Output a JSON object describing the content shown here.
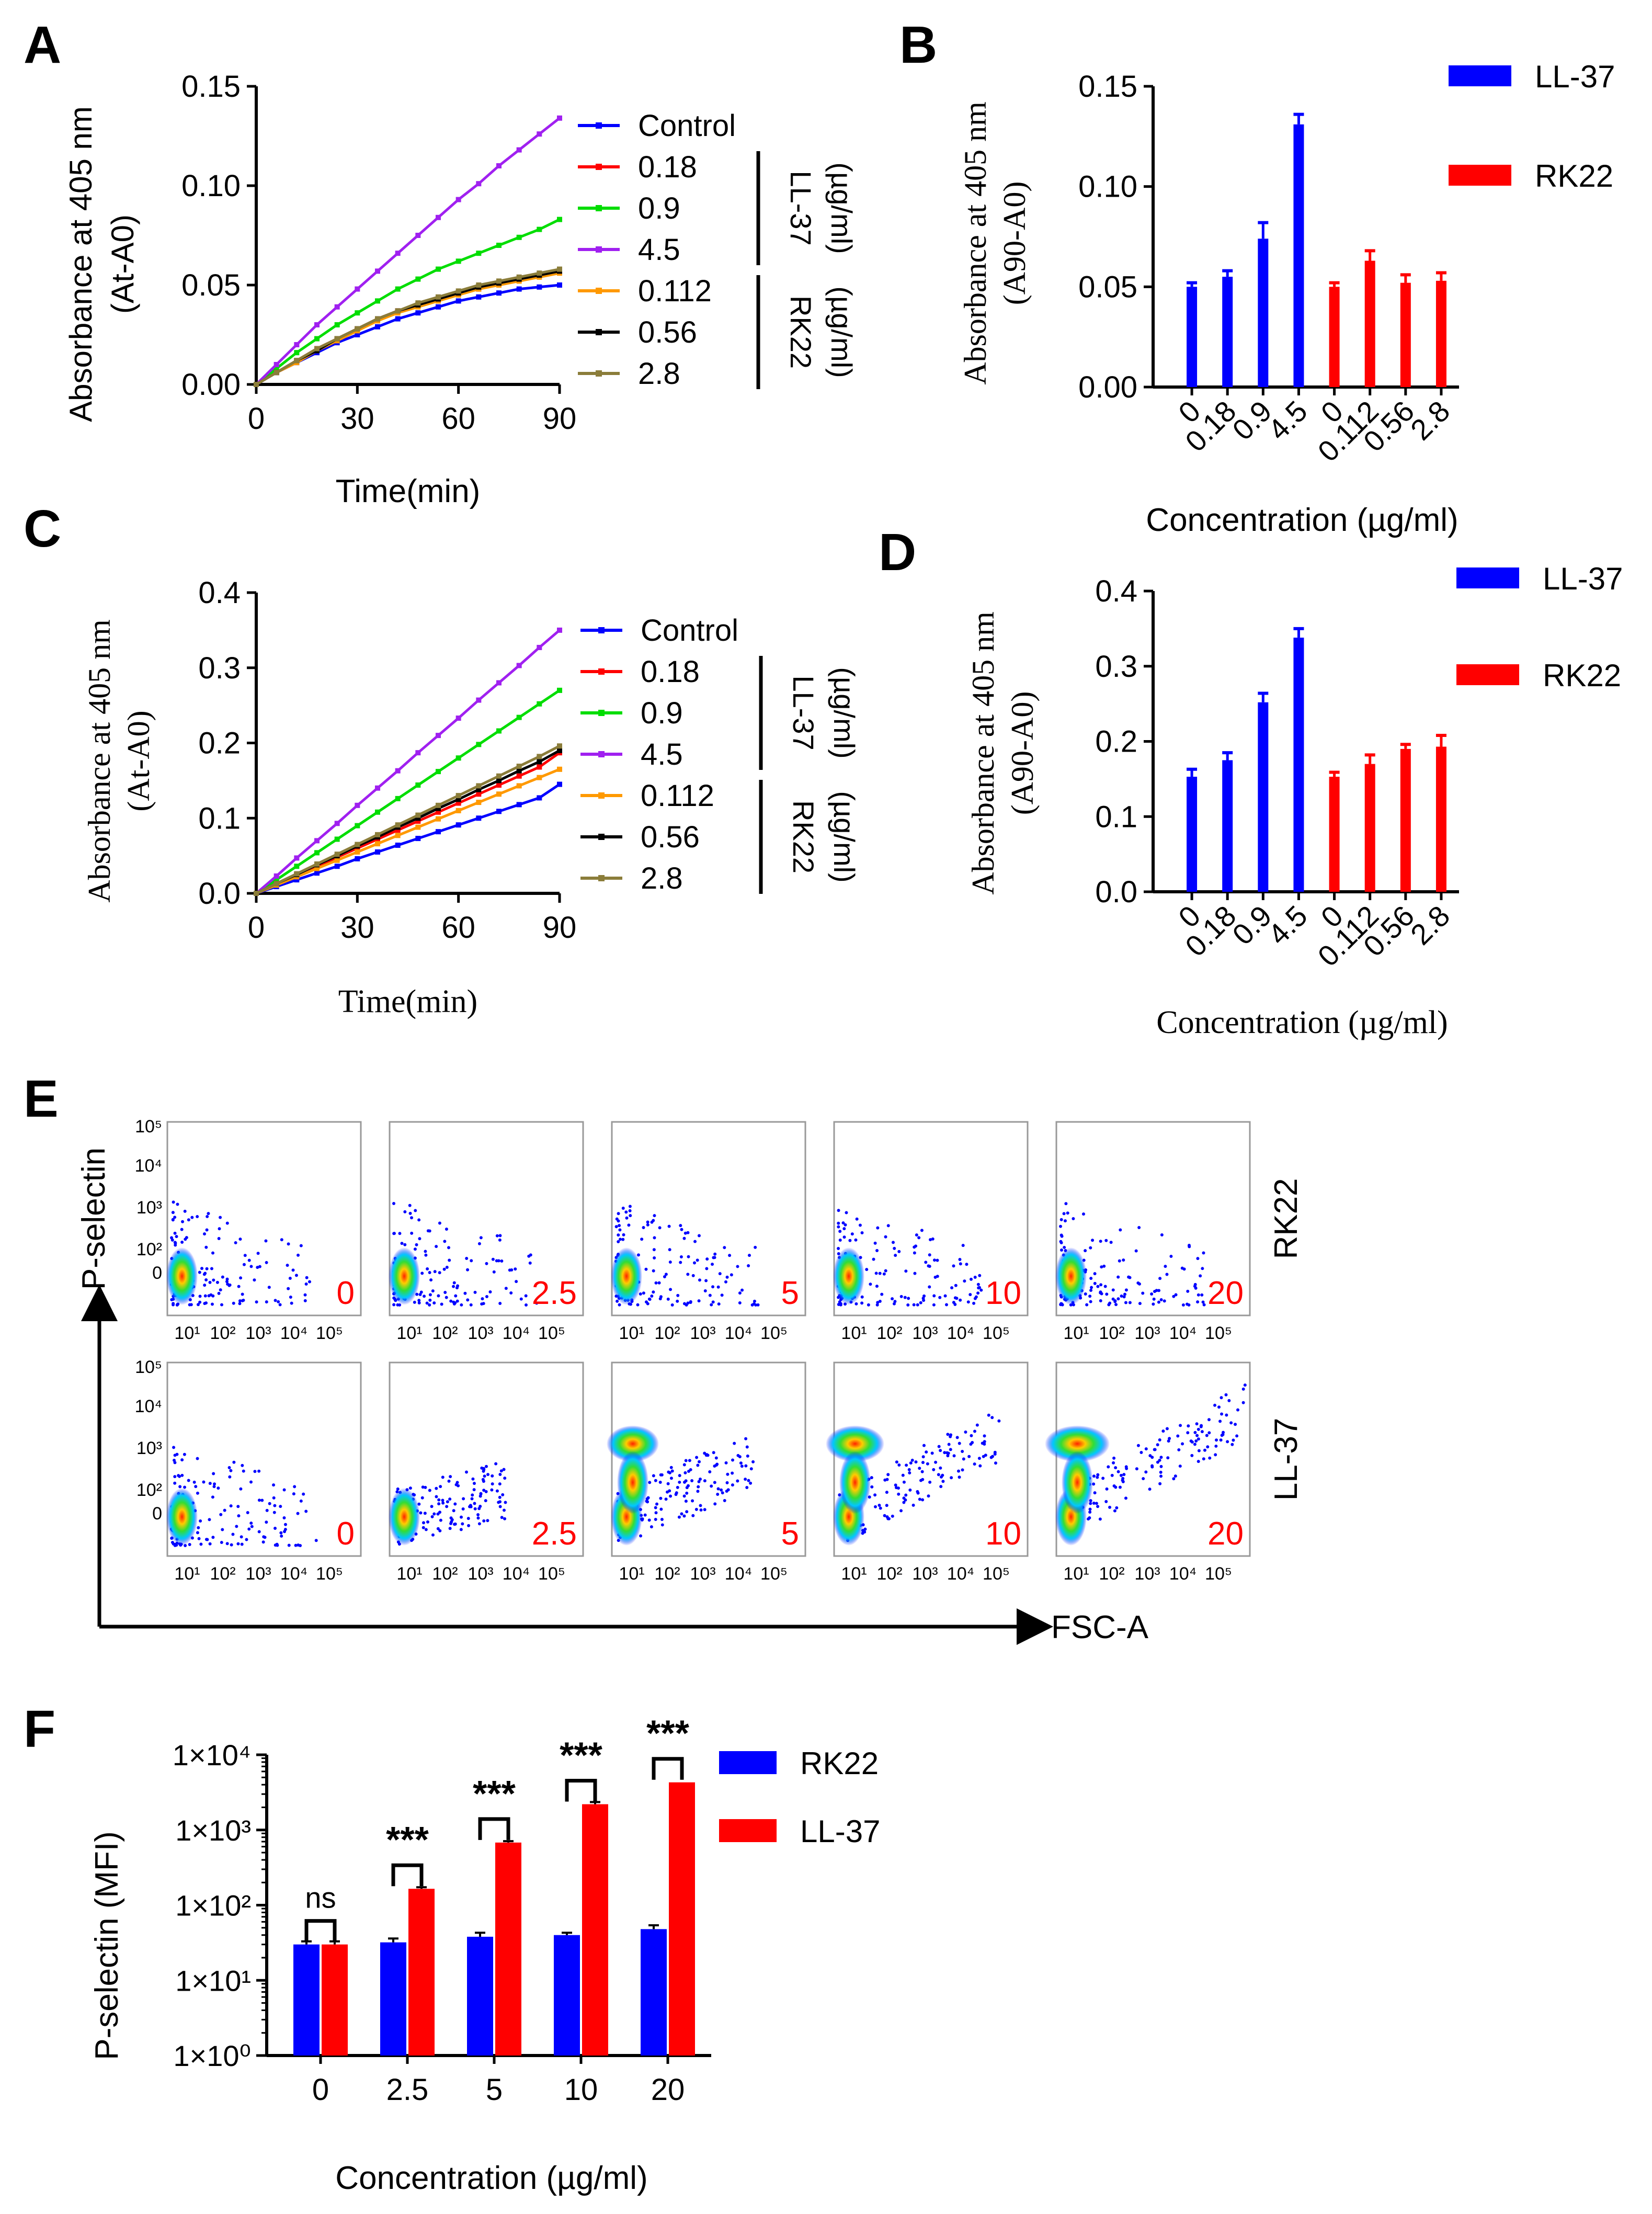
{
  "figure_letters": [
    "A",
    "B",
    "C",
    "D",
    "E",
    "F"
  ],
  "units": "(µg/ml)",
  "peptides": [
    "LL-37",
    "RK22"
  ],
  "chart_data": [
    {
      "panel": "A",
      "type": "line",
      "xlabel": "Time(min)",
      "ylabel_line1": "Absorbance at 405 nm",
      "ylabel_line2": "(At-A0)",
      "xlim": [
        0,
        90
      ],
      "ylim": [
        0,
        0.15
      ],
      "x_ticks": [
        "0",
        "30",
        "60",
        "90"
      ],
      "y_ticks": [
        "0.00",
        "0.05",
        "0.10",
        "0.15"
      ],
      "x": [
        0,
        6,
        12,
        18,
        24,
        30,
        36,
        42,
        48,
        54,
        60,
        66,
        72,
        78,
        84,
        90
      ],
      "series": [
        {
          "name": "Control",
          "group": "",
          "color": "#0000ff",
          "values": [
            0,
            0.006,
            0.011,
            0.016,
            0.021,
            0.025,
            0.029,
            0.033,
            0.036,
            0.039,
            0.042,
            0.044,
            0.046,
            0.048,
            0.049,
            0.05
          ]
        },
        {
          "name": "0.18",
          "group": "LL-37",
          "color": "#ff0000",
          "values": [
            0,
            0.006,
            0.012,
            0.018,
            0.023,
            0.028,
            0.033,
            0.037,
            0.04,
            0.043,
            0.046,
            0.048,
            0.051,
            0.053,
            0.055,
            0.057
          ]
        },
        {
          "name": "0.9",
          "group": "LL-37",
          "color": "#00dd00",
          "values": [
            0,
            0.008,
            0.016,
            0.023,
            0.03,
            0.036,
            0.042,
            0.048,
            0.053,
            0.058,
            0.062,
            0.066,
            0.07,
            0.074,
            0.078,
            0.083
          ]
        },
        {
          "name": "4.5",
          "group": "LL-37",
          "color": "#a020f0",
          "values": [
            0,
            0.01,
            0.02,
            0.03,
            0.039,
            0.048,
            0.057,
            0.066,
            0.075,
            0.084,
            0.093,
            0.101,
            0.11,
            0.118,
            0.126,
            0.134
          ]
        },
        {
          "name": "0.112",
          "group": "RK22",
          "color": "#ff9900",
          "values": [
            0,
            0.006,
            0.011,
            0.017,
            0.022,
            0.027,
            0.032,
            0.036,
            0.039,
            0.042,
            0.045,
            0.048,
            0.05,
            0.052,
            0.054,
            0.056
          ]
        },
        {
          "name": "0.56",
          "group": "RK22",
          "color": "#000000",
          "values": [
            0,
            0.006,
            0.012,
            0.017,
            0.023,
            0.028,
            0.033,
            0.037,
            0.04,
            0.043,
            0.046,
            0.049,
            0.051,
            0.053,
            0.055,
            0.057
          ]
        },
        {
          "name": "2.8",
          "group": "RK22",
          "color": "#8b7d3a",
          "values": [
            0,
            0.006,
            0.012,
            0.018,
            0.023,
            0.028,
            0.033,
            0.037,
            0.041,
            0.044,
            0.047,
            0.05,
            0.052,
            0.054,
            0.056,
            0.058
          ]
        }
      ]
    },
    {
      "panel": "B",
      "type": "bar",
      "xlabel": "Concentration (µg/ml)",
      "ylabel_line1": "Absorbance at 405 nm",
      "ylabel_line2": "(A90-A0)",
      "ylim": [
        0,
        0.15
      ],
      "y_ticks": [
        "0.00",
        "0.05",
        "0.10",
        "0.15"
      ],
      "categories": [
        "0",
        "0.18",
        "0.9",
        "4.5",
        "0",
        "0.112",
        "0.56",
        "2.8"
      ],
      "values": [
        0.05,
        0.055,
        0.074,
        0.131,
        0.05,
        0.063,
        0.052,
        0.053
      ],
      "errors": [
        0.002,
        0.003,
        0.008,
        0.005,
        0.002,
        0.005,
        0.004,
        0.004
      ],
      "series": [
        {
          "name": "LL-37",
          "color": "#0000ff"
        },
        {
          "name": "RK22",
          "color": "#ff0000"
        }
      ],
      "series_index": [
        0,
        0,
        0,
        0,
        1,
        1,
        1,
        1
      ]
    },
    {
      "panel": "C",
      "type": "line",
      "xlabel": "Time(min)",
      "ylabel_line1": "Absorbance at 405 nm",
      "ylabel_line2": "(At-A0)",
      "xlim": [
        0,
        90
      ],
      "ylim": [
        0,
        0.4
      ],
      "x_ticks": [
        "0",
        "30",
        "60",
        "90"
      ],
      "y_ticks": [
        "0.0",
        "0.1",
        "0.2",
        "0.3",
        "0.4"
      ],
      "x": [
        0,
        6,
        12,
        18,
        24,
        30,
        36,
        42,
        48,
        54,
        60,
        66,
        72,
        78,
        84,
        90
      ],
      "series": [
        {
          "name": "Control",
          "group": "",
          "color": "#0000ff",
          "values": [
            0,
            0.009,
            0.018,
            0.027,
            0.036,
            0.046,
            0.055,
            0.064,
            0.073,
            0.082,
            0.091,
            0.1,
            0.109,
            0.118,
            0.127,
            0.145
          ]
        },
        {
          "name": "0.18",
          "group": "LL-37",
          "color": "#ff0000",
          "values": [
            0,
            0.012,
            0.024,
            0.036,
            0.048,
            0.06,
            0.072,
            0.084,
            0.096,
            0.108,
            0.12,
            0.132,
            0.144,
            0.156,
            0.168,
            0.187
          ]
        },
        {
          "name": "0.9",
          "group": "LL-37",
          "color": "#00dd00",
          "values": [
            0,
            0.018,
            0.036,
            0.054,
            0.072,
            0.09,
            0.108,
            0.126,
            0.144,
            0.162,
            0.18,
            0.198,
            0.216,
            0.234,
            0.252,
            0.27
          ]
        },
        {
          "name": "4.5",
          "group": "LL-37",
          "color": "#a020f0",
          "values": [
            0,
            0.023,
            0.047,
            0.07,
            0.093,
            0.117,
            0.14,
            0.163,
            0.187,
            0.21,
            0.233,
            0.257,
            0.28,
            0.303,
            0.327,
            0.35
          ]
        },
        {
          "name": "0.112",
          "group": "RK22",
          "color": "#ff9900",
          "values": [
            0,
            0.011,
            0.022,
            0.033,
            0.044,
            0.055,
            0.066,
            0.077,
            0.088,
            0.099,
            0.11,
            0.121,
            0.132,
            0.143,
            0.154,
            0.165
          ]
        },
        {
          "name": "0.56",
          "group": "RK22",
          "color": "#000000",
          "values": [
            0,
            0.013,
            0.025,
            0.038,
            0.05,
            0.063,
            0.075,
            0.088,
            0.1,
            0.113,
            0.125,
            0.138,
            0.15,
            0.163,
            0.175,
            0.19
          ]
        },
        {
          "name": "2.8",
          "group": "RK22",
          "color": "#8b7d3a",
          "values": [
            0,
            0.013,
            0.026,
            0.039,
            0.052,
            0.065,
            0.078,
            0.091,
            0.104,
            0.117,
            0.13,
            0.143,
            0.156,
            0.169,
            0.182,
            0.196
          ]
        }
      ]
    },
    {
      "panel": "D",
      "type": "bar",
      "xlabel": "Concentration (µg/ml)",
      "ylabel_line1": "Absorbance at 405 nm",
      "ylabel_line2": "(A90-A0)",
      "ylim": [
        0,
        0.4
      ],
      "y_ticks": [
        "0.0",
        "0.1",
        "0.2",
        "0.3",
        "0.4"
      ],
      "categories": [
        "0",
        "0.18",
        "0.9",
        "4.5",
        "0",
        "0.112",
        "0.56",
        "2.8"
      ],
      "values": [
        0.153,
        0.175,
        0.252,
        0.338,
        0.153,
        0.17,
        0.19,
        0.193
      ],
      "errors": [
        0.01,
        0.01,
        0.012,
        0.012,
        0.006,
        0.012,
        0.006,
        0.015
      ],
      "series": [
        {
          "name": "LL-37",
          "color": "#0000ff"
        },
        {
          "name": "RK22",
          "color": "#ff0000"
        }
      ],
      "series_index": [
        0,
        0,
        0,
        0,
        1,
        1,
        1,
        1
      ]
    },
    {
      "panel": "E",
      "type": "scatter",
      "xlabel": "FSC-A",
      "ylabel": "P-selectin",
      "x_ticks": [
        "10¹",
        "10²",
        "10³",
        "10⁴",
        "10⁵"
      ],
      "y_ticks": [
        "0",
        "10²",
        "10³",
        "10⁴",
        "10⁵"
      ],
      "rows": [
        {
          "name": "RK22",
          "labels": [
            "0",
            "2.5",
            "5",
            "10",
            "20"
          ]
        },
        {
          "name": "LL-37",
          "labels": [
            "0",
            "2.5",
            "5",
            "10",
            "20"
          ]
        }
      ]
    },
    {
      "panel": "F",
      "type": "bar",
      "yscale": "log",
      "xlabel": "Concentration (µg/ml)",
      "ylabel": "P-selectin (MFI)",
      "ylim": [
        1,
        10000
      ],
      "y_ticks": [
        "1×10⁰",
        "1×10¹",
        "1×10²",
        "1×10³",
        "1×10⁴"
      ],
      "categories": [
        "0",
        "2.5",
        "5",
        "10",
        "20"
      ],
      "series": [
        {
          "name": "RK22",
          "color": "#0000ff",
          "values": [
            30,
            32,
            38,
            40,
            48
          ],
          "errors": [
            3,
            4,
            5,
            3,
            6
          ]
        },
        {
          "name": "LL-37",
          "color": "#ff0000",
          "values": [
            30,
            165,
            680,
            2200,
            4300
          ],
          "errors": [
            3,
            8,
            30,
            150,
            0
          ]
        }
      ],
      "significance": [
        "ns",
        "***",
        "***",
        "***",
        "***"
      ]
    }
  ]
}
